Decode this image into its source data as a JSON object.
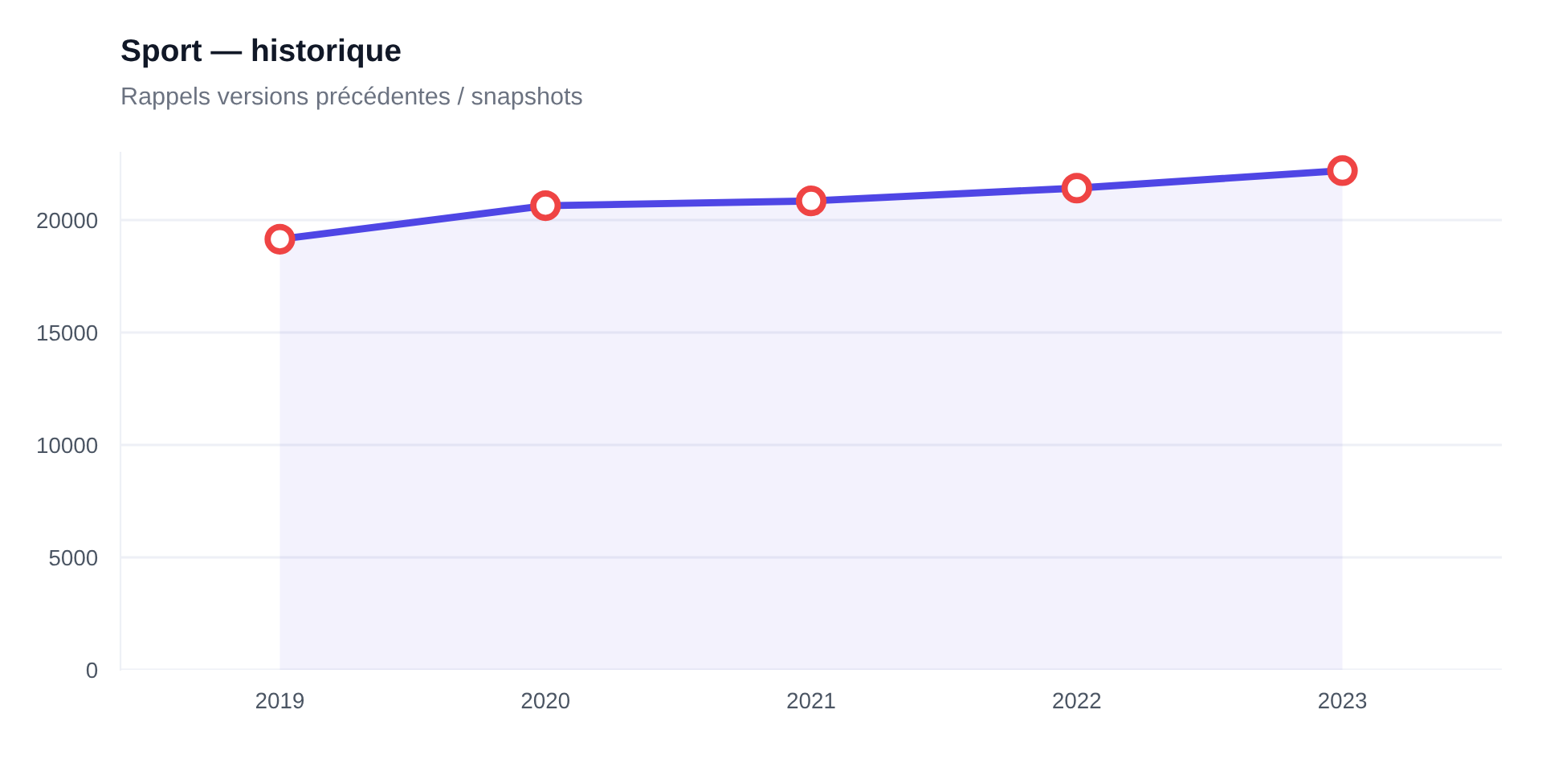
{
  "chart_data": {
    "type": "area",
    "title": "Sport — historique",
    "subtitle": "Rappels versions précédentes / snapshots",
    "categories": [
      "2019",
      "2020",
      "2021",
      "2022",
      "2023"
    ],
    "series": [
      {
        "color": "#4f46e5",
        "values": [
          19150,
          20640,
          20850,
          21420,
          22200
        ]
      }
    ],
    "ylim": [
      0,
      23000
    ],
    "yticks": [
      0,
      5000,
      10000,
      15000,
      20000
    ],
    "grid": "y",
    "marker": "circle",
    "line_style": "solid",
    "legend": false
  }
}
